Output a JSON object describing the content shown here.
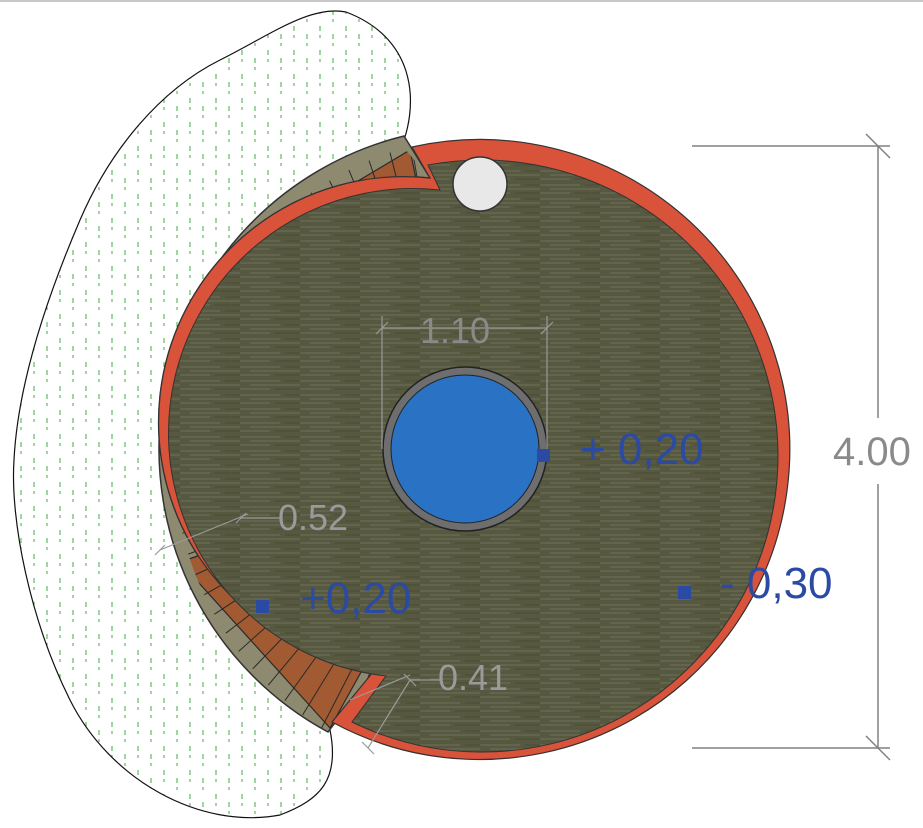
{
  "plan": {
    "total_height_label": "4.00",
    "pool_diameter_label": "1.10",
    "step_width_label": "0.52",
    "gap_label": "0.41",
    "levels": {
      "pool": "+ 0,20",
      "steps": "+0,20",
      "deck": "- 0,30"
    }
  },
  "colors": {
    "frame_line": "#c8c8c8",
    "deck": "#56583f",
    "deck_rim": "#d9523a",
    "pool_water": "#2a72c4",
    "pool_ring": "#6e6e6e",
    "steps_wood": "#a15a32",
    "steps_base": "#8d8a70",
    "planting_lines": "#45a845",
    "dimension_lines": "#808080",
    "level_text": "#2a4aa3",
    "ball": "#e8e8e8"
  },
  "icons": {
    "level_marker": "square-marker-icon"
  }
}
